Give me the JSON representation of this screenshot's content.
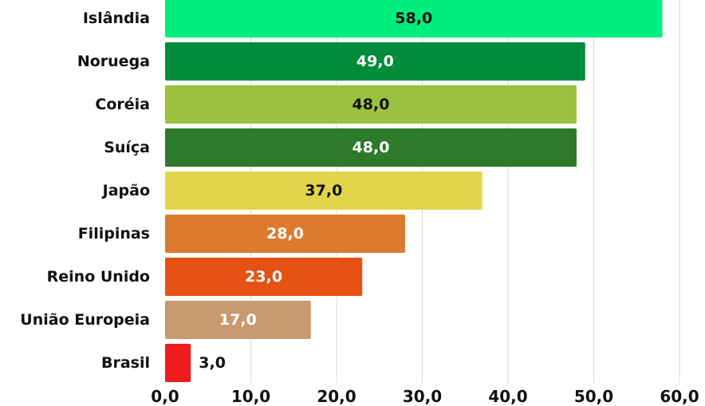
{
  "chart_data": {
    "type": "bar",
    "orientation": "horizontal",
    "categories": [
      "Islândia",
      "Noruega",
      "Coréia",
      "Suíça",
      "Japão",
      "Filipinas",
      "Reino Unido",
      "União Europeia",
      "Brasil"
    ],
    "values": [
      58.0,
      49.0,
      48.0,
      48.0,
      37.0,
      28.0,
      23.0,
      17.0,
      3.0
    ],
    "value_labels": [
      "58,0",
      "49,0",
      "48,0",
      "48,0",
      "37,0",
      "28,0",
      "23,0",
      "17,0",
      "3,0"
    ],
    "bar_colors": [
      "#00ee7f",
      "#008c3a",
      "#9bc23f",
      "#2d7a2a",
      "#e3d54b",
      "#de7a2b",
      "#e65214",
      "#c99a70",
      "#ee1c1c"
    ],
    "label_colors": [
      "#111111",
      "#ffffff",
      "#111111",
      "#ffffff",
      "#111111",
      "#ffffff",
      "#ffffff",
      "#ffffff",
      "#111111"
    ],
    "label_outside": [
      false,
      false,
      false,
      false,
      false,
      false,
      false,
      false,
      true
    ],
    "x_ticks": [
      0,
      10,
      20,
      30,
      40,
      50,
      60
    ],
    "x_tick_labels": [
      "0,0",
      "10,0",
      "20,0",
      "30,0",
      "40,0",
      "50,0",
      "60,0"
    ],
    "xlim": [
      0,
      60
    ],
    "grid": true,
    "legend": "none",
    "title": "",
    "xlabel": "",
    "ylabel": ""
  }
}
